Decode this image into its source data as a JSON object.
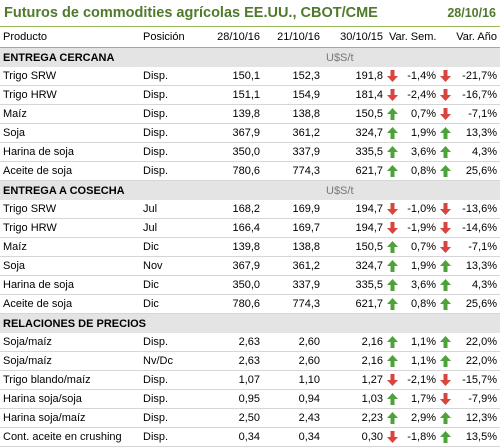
{
  "title": "Futuros de commodities agrícolas EE.UU., CBOT/CME",
  "date": "28/10/16",
  "colors": {
    "title": "#4e7a2a",
    "up": "#4da33a",
    "down": "#d9443e"
  },
  "headers": [
    "Producto",
    "Posición",
    "28/10/16",
    "21/10/16",
    "30/10/15",
    "Var. Sem.",
    "Var. Año"
  ],
  "sections": [
    {
      "name": "ENTREGA CERCANA",
      "unit": "U$S/t",
      "rows": [
        {
          "p": "Trigo SRW",
          "pos": "Disp.",
          "a": "150,1",
          "b": "152,3",
          "c": "191,8",
          "s": "-1,4%",
          "sd": "down",
          "y": "-21,7%",
          "yd": "down"
        },
        {
          "p": "Trigo HRW",
          "pos": "Disp.",
          "a": "151,1",
          "b": "154,9",
          "c": "181,4",
          "s": "-2,4%",
          "sd": "down",
          "y": "-16,7%",
          "yd": "down"
        },
        {
          "p": "Maíz",
          "pos": "Disp.",
          "a": "139,8",
          "b": "138,8",
          "c": "150,5",
          "s": "0,7%",
          "sd": "up",
          "y": "-7,1%",
          "yd": "down"
        },
        {
          "p": "Soja",
          "pos": "Disp.",
          "a": "367,9",
          "b": "361,2",
          "c": "324,7",
          "s": "1,9%",
          "sd": "up",
          "y": "13,3%",
          "yd": "up"
        },
        {
          "p": "Harina de soja",
          "pos": "Disp.",
          "a": "350,0",
          "b": "337,9",
          "c": "335,5",
          "s": "3,6%",
          "sd": "up",
          "y": "4,3%",
          "yd": "up"
        },
        {
          "p": "Aceite de soja",
          "pos": "Disp.",
          "a": "780,6",
          "b": "774,3",
          "c": "621,7",
          "s": "0,8%",
          "sd": "up",
          "y": "25,6%",
          "yd": "up"
        }
      ]
    },
    {
      "name": "ENTREGA A COSECHA",
      "unit": "U$S/t",
      "rows": [
        {
          "p": "Trigo SRW",
          "pos": "Jul",
          "a": "168,2",
          "b": "169,9",
          "c": "194,7",
          "s": "-1,0%",
          "sd": "down",
          "y": "-13,6%",
          "yd": "down"
        },
        {
          "p": "Trigo HRW",
          "pos": "Jul",
          "a": "166,4",
          "b": "169,7",
          "c": "194,7",
          "s": "-1,9%",
          "sd": "down",
          "y": "-14,6%",
          "yd": "down"
        },
        {
          "p": "Maíz",
          "pos": "Dic",
          "a": "139,8",
          "b": "138,8",
          "c": "150,5",
          "s": "0,7%",
          "sd": "up",
          "y": "-7,1%",
          "yd": "down"
        },
        {
          "p": "Soja",
          "pos": "Nov",
          "a": "367,9",
          "b": "361,2",
          "c": "324,7",
          "s": "1,9%",
          "sd": "up",
          "y": "13,3%",
          "yd": "up"
        },
        {
          "p": "Harina de soja",
          "pos": "Dic",
          "a": "350,0",
          "b": "337,9",
          "c": "335,5",
          "s": "3,6%",
          "sd": "up",
          "y": "4,3%",
          "yd": "up"
        },
        {
          "p": "Aceite de soja",
          "pos": "Dic",
          "a": "780,6",
          "b": "774,3",
          "c": "621,7",
          "s": "0,8%",
          "sd": "up",
          "y": "25,6%",
          "yd": "up"
        }
      ]
    },
    {
      "name": "RELACIONES DE PRECIOS",
      "unit": "",
      "rows": [
        {
          "p": "Soja/maíz",
          "pos": "Disp.",
          "a": "2,63",
          "b": "2,60",
          "c": "2,16",
          "s": "1,1%",
          "sd": "up",
          "y": "22,0%",
          "yd": "up"
        },
        {
          "p": "Soja/maíz",
          "pos": "Nv/Dc",
          "a": "2,63",
          "b": "2,60",
          "c": "2,16",
          "s": "1,1%",
          "sd": "up",
          "y": "22,0%",
          "yd": "up"
        },
        {
          "p": "Trigo blando/maíz",
          "pos": "Disp.",
          "a": "1,07",
          "b": "1,10",
          "c": "1,27",
          "s": "-2,1%",
          "sd": "down",
          "y": "-15,7%",
          "yd": "down"
        },
        {
          "p": "Harina soja/soja",
          "pos": "Disp.",
          "a": "0,95",
          "b": "0,94",
          "c": "1,03",
          "s": "1,7%",
          "sd": "up",
          "y": "-7,9%",
          "yd": "down"
        },
        {
          "p": "Harina soja/maíz",
          "pos": "Disp.",
          "a": "2,50",
          "b": "2,43",
          "c": "2,23",
          "s": "2,9%",
          "sd": "up",
          "y": "12,3%",
          "yd": "up"
        },
        {
          "p": "Cont. aceite en crushing",
          "pos": "Disp.",
          "a": "0,34",
          "b": "0,34",
          "c": "0,30",
          "s": "-1,8%",
          "sd": "down",
          "y": "13,5%",
          "yd": "up"
        }
      ]
    }
  ]
}
